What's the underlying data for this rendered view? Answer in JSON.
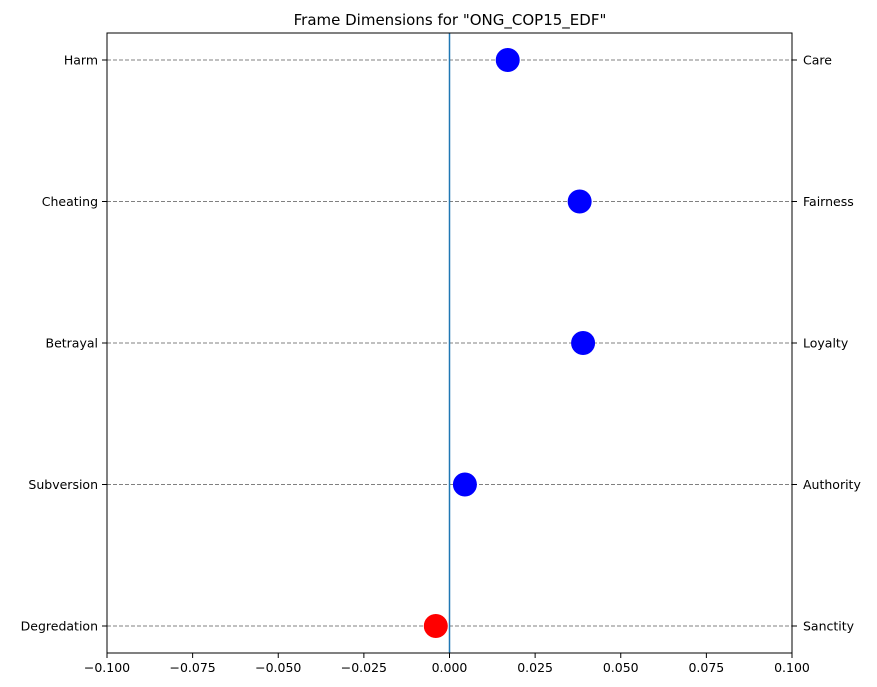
{
  "chart_data": {
    "type": "scatter",
    "title": "Frame Dimensions for \"ONG_COP15_EDF\"",
    "xlim": [
      -0.1,
      0.1
    ],
    "x_ticks": [
      "-0.100",
      "-0.075",
      "-0.050",
      "-0.025",
      "0.000",
      "0.025",
      "0.050",
      "0.075",
      "0.100"
    ],
    "x_tick_values": [
      -0.1,
      -0.075,
      -0.05,
      -0.025,
      0.0,
      0.025,
      0.05,
      0.075,
      0.1
    ],
    "left_labels": [
      "Harm",
      "Cheating",
      "Betrayal",
      "Subversion",
      "Degredation"
    ],
    "right_labels": [
      "Care",
      "Fairness",
      "Loyalty",
      "Authority",
      "Sanctity"
    ],
    "points": [
      {
        "dimension": "Care",
        "x": 0.017,
        "color": "#0000ff"
      },
      {
        "dimension": "Fairness",
        "x": 0.038,
        "color": "#0000ff"
      },
      {
        "dimension": "Loyalty",
        "x": 0.039,
        "color": "#0000ff"
      },
      {
        "dimension": "Authority",
        "x": 0.0045,
        "color": "#0000ff"
      },
      {
        "dimension": "Sanctity",
        "x": -0.004,
        "color": "#ff0000"
      }
    ],
    "zero_line_color": "#1f77b4",
    "row_grid": "dashed"
  }
}
